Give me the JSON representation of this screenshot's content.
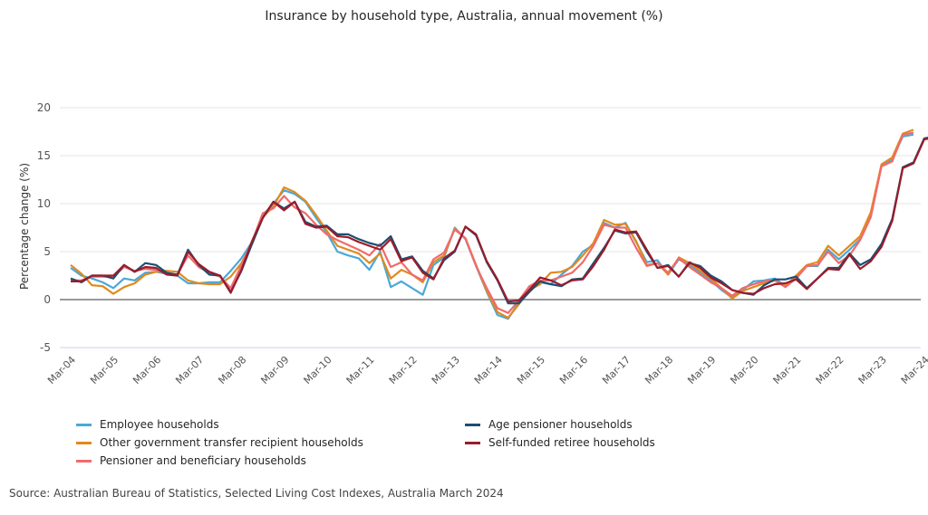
{
  "chart_data": {
    "type": "line",
    "title": "Insurance by household type, Australia, annual movement (%)",
    "xlabel": "",
    "ylabel": "Percentage change (%)",
    "ylim": [
      -5,
      20
    ],
    "yticks": [
      20,
      15,
      10,
      5,
      0,
      -5
    ],
    "grid": true,
    "legend_position": "bottom",
    "x_tick_labels": [
      "Mar-04",
      "Mar-05",
      "Mar-06",
      "Mar-07",
      "Mar-08",
      "Mar-09",
      "Mar-10",
      "Mar-11",
      "Mar-12",
      "Mar-13",
      "Mar-14",
      "Mar-15",
      "Mar-16",
      "Mar-17",
      "Mar-18",
      "Mar-19",
      "Mar-20",
      "Mar-21",
      "Mar-22",
      "Mar-23",
      "Mar-24"
    ],
    "x_frequency": "quarterly",
    "series": [
      {
        "name": "Employee households",
        "color": "#4BA8D8",
        "values": [
          3.3,
          2.5,
          2.2,
          1.8,
          1.2,
          2.2,
          2.0,
          2.8,
          2.9,
          2.7,
          2.5,
          1.7,
          1.7,
          1.8,
          1.8,
          3.0,
          4.3,
          6.0,
          8.8,
          10.0,
          11.4,
          11.0,
          10.2,
          8.5,
          7.0,
          5.0,
          4.6,
          4.3,
          3.1,
          5.0,
          1.3,
          1.9,
          1.2,
          0.5,
          3.6,
          4.4,
          7.5,
          6.3,
          3.5,
          0.8,
          -1.6,
          -2.0,
          -0.3,
          1.3,
          1.8,
          1.6,
          2.6,
          3.5,
          5.0,
          5.7,
          8.0,
          7.5,
          8.0,
          6.0,
          3.9,
          4.1,
          2.6,
          4.2,
          3.6,
          2.8,
          2.0,
          1.0,
          0.2,
          1.0,
          1.9,
          2.0,
          2.2,
          1.4,
          2.4,
          3.5,
          3.5,
          5.2,
          4.2,
          5.2,
          6.3,
          8.8,
          14.0,
          14.6,
          17.0,
          17.2
        ]
      },
      {
        "name": "Other government transfer recipient households",
        "color": "#E08A1E",
        "values": [
          3.6,
          2.7,
          1.5,
          1.4,
          0.6,
          1.3,
          1.7,
          2.6,
          2.9,
          3.0,
          2.9,
          2.0,
          1.7,
          1.6,
          1.6,
          2.4,
          3.8,
          5.8,
          8.6,
          9.7,
          11.7,
          11.2,
          10.3,
          8.8,
          7.2,
          5.6,
          5.2,
          4.8,
          3.8,
          4.8,
          2.2,
          3.1,
          2.6,
          1.8,
          3.9,
          4.6,
          7.4,
          6.4,
          3.6,
          0.9,
          -1.3,
          -1.9,
          -0.5,
          1.0,
          1.6,
          2.8,
          2.9,
          3.4,
          4.6,
          5.9,
          8.3,
          7.8,
          7.9,
          6.1,
          3.6,
          3.8,
          2.6,
          4.4,
          3.8,
          3.0,
          2.2,
          1.2,
          0.1,
          0.9,
          1.3,
          1.7,
          2.0,
          1.4,
          2.5,
          3.6,
          3.9,
          5.6,
          4.6,
          5.6,
          6.6,
          9.1,
          14.1,
          14.8,
          17.3,
          17.7
        ]
      },
      {
        "name": "Pensioner and beneficiary households",
        "color": "#F26A6A",
        "values": [
          2.0,
          2.0,
          2.4,
          2.4,
          2.4,
          3.4,
          3.0,
          3.2,
          3.1,
          2.8,
          2.6,
          4.6,
          3.4,
          2.8,
          2.4,
          1.2,
          3.6,
          6.0,
          9.0,
          9.5,
          10.8,
          9.6,
          9.0,
          7.8,
          6.8,
          6.2,
          5.7,
          5.2,
          4.6,
          5.8,
          3.4,
          3.9,
          2.6,
          2.0,
          4.2,
          4.9,
          7.3,
          6.4,
          3.5,
          1.2,
          -0.9,
          -1.4,
          -0.1,
          1.4,
          2.0,
          2.0,
          2.4,
          2.8,
          3.9,
          5.6,
          7.8,
          7.5,
          7.5,
          5.4,
          3.5,
          3.8,
          2.8,
          4.3,
          3.4,
          2.6,
          1.8,
          1.2,
          0.4,
          1.2,
          1.6,
          1.9,
          2.0,
          1.3,
          2.2,
          3.5,
          3.6,
          5.0,
          3.8,
          4.6,
          6.2,
          8.6,
          13.9,
          14.4,
          17.2,
          17.4
        ]
      },
      {
        "name": "Age pensioner households",
        "color": "#1B4F72",
        "values": [
          2.2,
          1.8,
          2.5,
          2.5,
          2.2,
          3.6,
          2.9,
          3.8,
          3.6,
          2.8,
          2.6,
          5.2,
          3.6,
          2.6,
          2.5,
          0.8,
          3.0,
          5.8,
          8.5,
          10.2,
          9.5,
          10.2,
          8.1,
          7.6,
          7.7,
          6.8,
          6.8,
          6.3,
          5.9,
          5.6,
          6.6,
          4.2,
          4.5,
          3.0,
          2.2,
          4.1,
          5.0,
          7.6,
          6.7,
          3.9,
          2.0,
          -0.4,
          -0.4,
          0.8,
          1.9,
          1.6,
          1.4,
          2.1,
          2.2,
          3.8,
          5.4,
          7.2,
          6.9,
          7.0,
          5.0,
          3.3,
          3.6,
          2.4,
          3.8,
          3.5,
          2.5,
          1.9,
          1.0,
          0.7,
          0.5,
          1.5,
          2.1,
          2.1,
          2.4,
          1.2,
          2.2,
          3.3,
          3.3,
          4.8,
          3.6,
          4.2,
          5.8,
          8.4,
          13.8,
          14.3,
          16.8,
          17.0
        ]
      },
      {
        "name": "Self-funded retiree households",
        "color": "#9B1B2A",
        "values": [
          1.9,
          1.9,
          2.5,
          2.5,
          2.5,
          3.6,
          2.9,
          3.4,
          3.3,
          2.6,
          2.5,
          5.0,
          3.7,
          2.9,
          2.5,
          0.7,
          3.1,
          6.1,
          8.5,
          10.2,
          9.3,
          10.2,
          7.9,
          7.5,
          7.6,
          6.6,
          6.5,
          6.0,
          5.6,
          5.2,
          6.3,
          4.0,
          4.4,
          2.8,
          2.1,
          4.3,
          5.1,
          7.6,
          6.8,
          4.0,
          2.1,
          -0.2,
          -0.1,
          1.0,
          2.3,
          2.0,
          1.5,
          2.0,
          2.1,
          3.5,
          5.2,
          7.3,
          7.0,
          7.1,
          5.2,
          3.3,
          3.5,
          2.4,
          3.9,
          3.3,
          2.3,
          1.7,
          1.0,
          0.7,
          0.6,
          1.2,
          1.6,
          1.7,
          2.1,
          1.1,
          2.2,
          3.2,
          3.1,
          4.7,
          3.2,
          4.0,
          5.5,
          8.2,
          13.7,
          14.2,
          16.7,
          16.9
        ]
      }
    ]
  },
  "source_text": "Source: Australian Bureau of Statistics, Selected Living Cost Indexes, Australia March 2024"
}
